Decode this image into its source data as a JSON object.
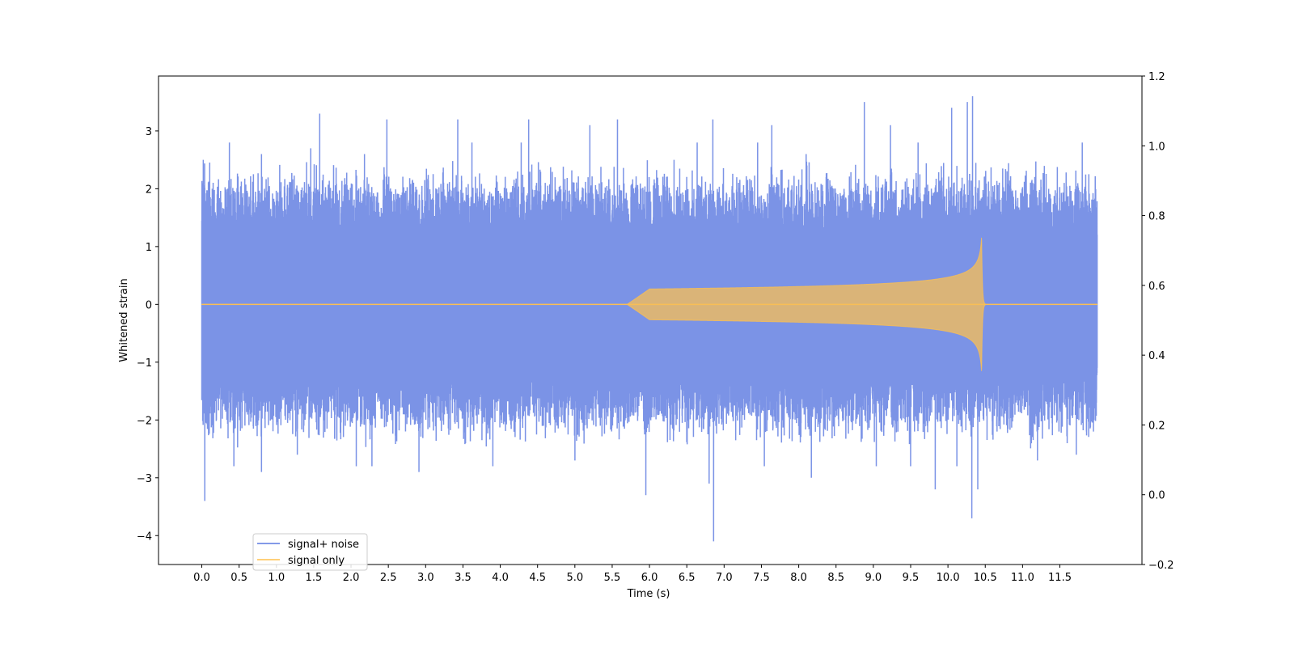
{
  "chart_data": {
    "type": "line",
    "title": "",
    "xlabel": "Time (s)",
    "ylabel": "Whitened strain",
    "xlim": [
      -0.58,
      12.6
    ],
    "ylim": [
      -4.5,
      3.95
    ],
    "y2lim": [
      -0.2,
      1.2
    ],
    "xticks": [
      0.0,
      0.5,
      1.0,
      1.5,
      2.0,
      2.5,
      3.0,
      3.5,
      4.0,
      4.5,
      5.0,
      5.5,
      6.0,
      6.5,
      7.0,
      7.5,
      8.0,
      8.5,
      9.0,
      9.5,
      10.0,
      10.5,
      11.0,
      11.5
    ],
    "xtick_labels": [
      "0.0",
      "0.5",
      "1.0",
      "1.5",
      "2.0",
      "2.5",
      "3.0",
      "3.5",
      "4.0",
      "4.5",
      "5.0",
      "5.5",
      "6.0",
      "6.5",
      "7.0",
      "7.5",
      "8.0",
      "8.5",
      "9.0",
      "9.5",
      "10.0",
      "10.5",
      "11.0",
      "11.5"
    ],
    "yticks": [
      -4,
      -3,
      -2,
      -1,
      0,
      1,
      2,
      3
    ],
    "ytick_labels": [
      "−4",
      "−3",
      "−2",
      "−1",
      "0",
      "1",
      "2",
      "3"
    ],
    "y2ticks": [
      -0.2,
      0.0,
      0.2,
      0.4,
      0.6,
      0.8,
      1.0,
      1.2
    ],
    "y2tick_labels": [
      "−0.2",
      "0.0",
      "0.2",
      "0.4",
      "0.6",
      "0.8",
      "1.0",
      "1.2"
    ],
    "grid": false,
    "legend_position": "lower-left",
    "series": [
      {
        "name": "signal+ noise",
        "color": "#5a78e0",
        "x_range": [
          0.0,
          12.0
        ],
        "envelope_typical": 1.9,
        "peaks_high": [
          [
            0.02,
            2.5
          ],
          [
            0.37,
            2.8
          ],
          [
            0.8,
            2.6
          ],
          [
            1.46,
            2.7
          ],
          [
            1.58,
            3.3
          ],
          [
            2.18,
            2.6
          ],
          [
            2.48,
            3.2
          ],
          [
            3.43,
            3.2
          ],
          [
            3.62,
            2.8
          ],
          [
            4.28,
            2.8
          ],
          [
            4.38,
            3.2
          ],
          [
            5.2,
            3.1
          ],
          [
            5.57,
            3.2
          ],
          [
            6.33,
            2.5
          ],
          [
            6.64,
            2.8
          ],
          [
            6.85,
            3.2
          ],
          [
            7.45,
            2.8
          ],
          [
            7.64,
            3.1
          ],
          [
            8.1,
            2.6
          ],
          [
            8.88,
            3.5
          ],
          [
            9.23,
            3.1
          ],
          [
            9.6,
            2.8
          ],
          [
            10.05,
            3.4
          ],
          [
            10.26,
            3.5
          ],
          [
            10.33,
            3.6
          ],
          [
            11.8,
            2.8
          ]
        ],
        "peaks_low": [
          [
            0.04,
            -3.4
          ],
          [
            0.43,
            -2.8
          ],
          [
            0.8,
            -2.9
          ],
          [
            1.28,
            -2.6
          ],
          [
            2.07,
            -2.8
          ],
          [
            2.28,
            -2.8
          ],
          [
            2.91,
            -2.9
          ],
          [
            3.9,
            -2.8
          ],
          [
            5.0,
            -2.7
          ],
          [
            5.95,
            -3.3
          ],
          [
            6.8,
            -3.1
          ],
          [
            6.86,
            -4.1
          ],
          [
            7.54,
            -2.8
          ],
          [
            8.17,
            -3.0
          ],
          [
            9.04,
            -2.8
          ],
          [
            9.5,
            -2.8
          ],
          [
            9.83,
            -3.2
          ],
          [
            10.12,
            -2.8
          ],
          [
            10.32,
            -3.7
          ],
          [
            10.4,
            -3.2
          ],
          [
            11.2,
            -2.7
          ],
          [
            11.72,
            -2.6
          ],
          [
            11.95,
            -2.2
          ]
        ]
      },
      {
        "name": "signal only",
        "color": "#ffc04d",
        "x_range": [
          0.0,
          12.0
        ],
        "chirp_start": 6.0,
        "merger_time": 10.45,
        "peak_amplitude": 1.3,
        "ringdown_end": 10.5
      }
    ]
  }
}
